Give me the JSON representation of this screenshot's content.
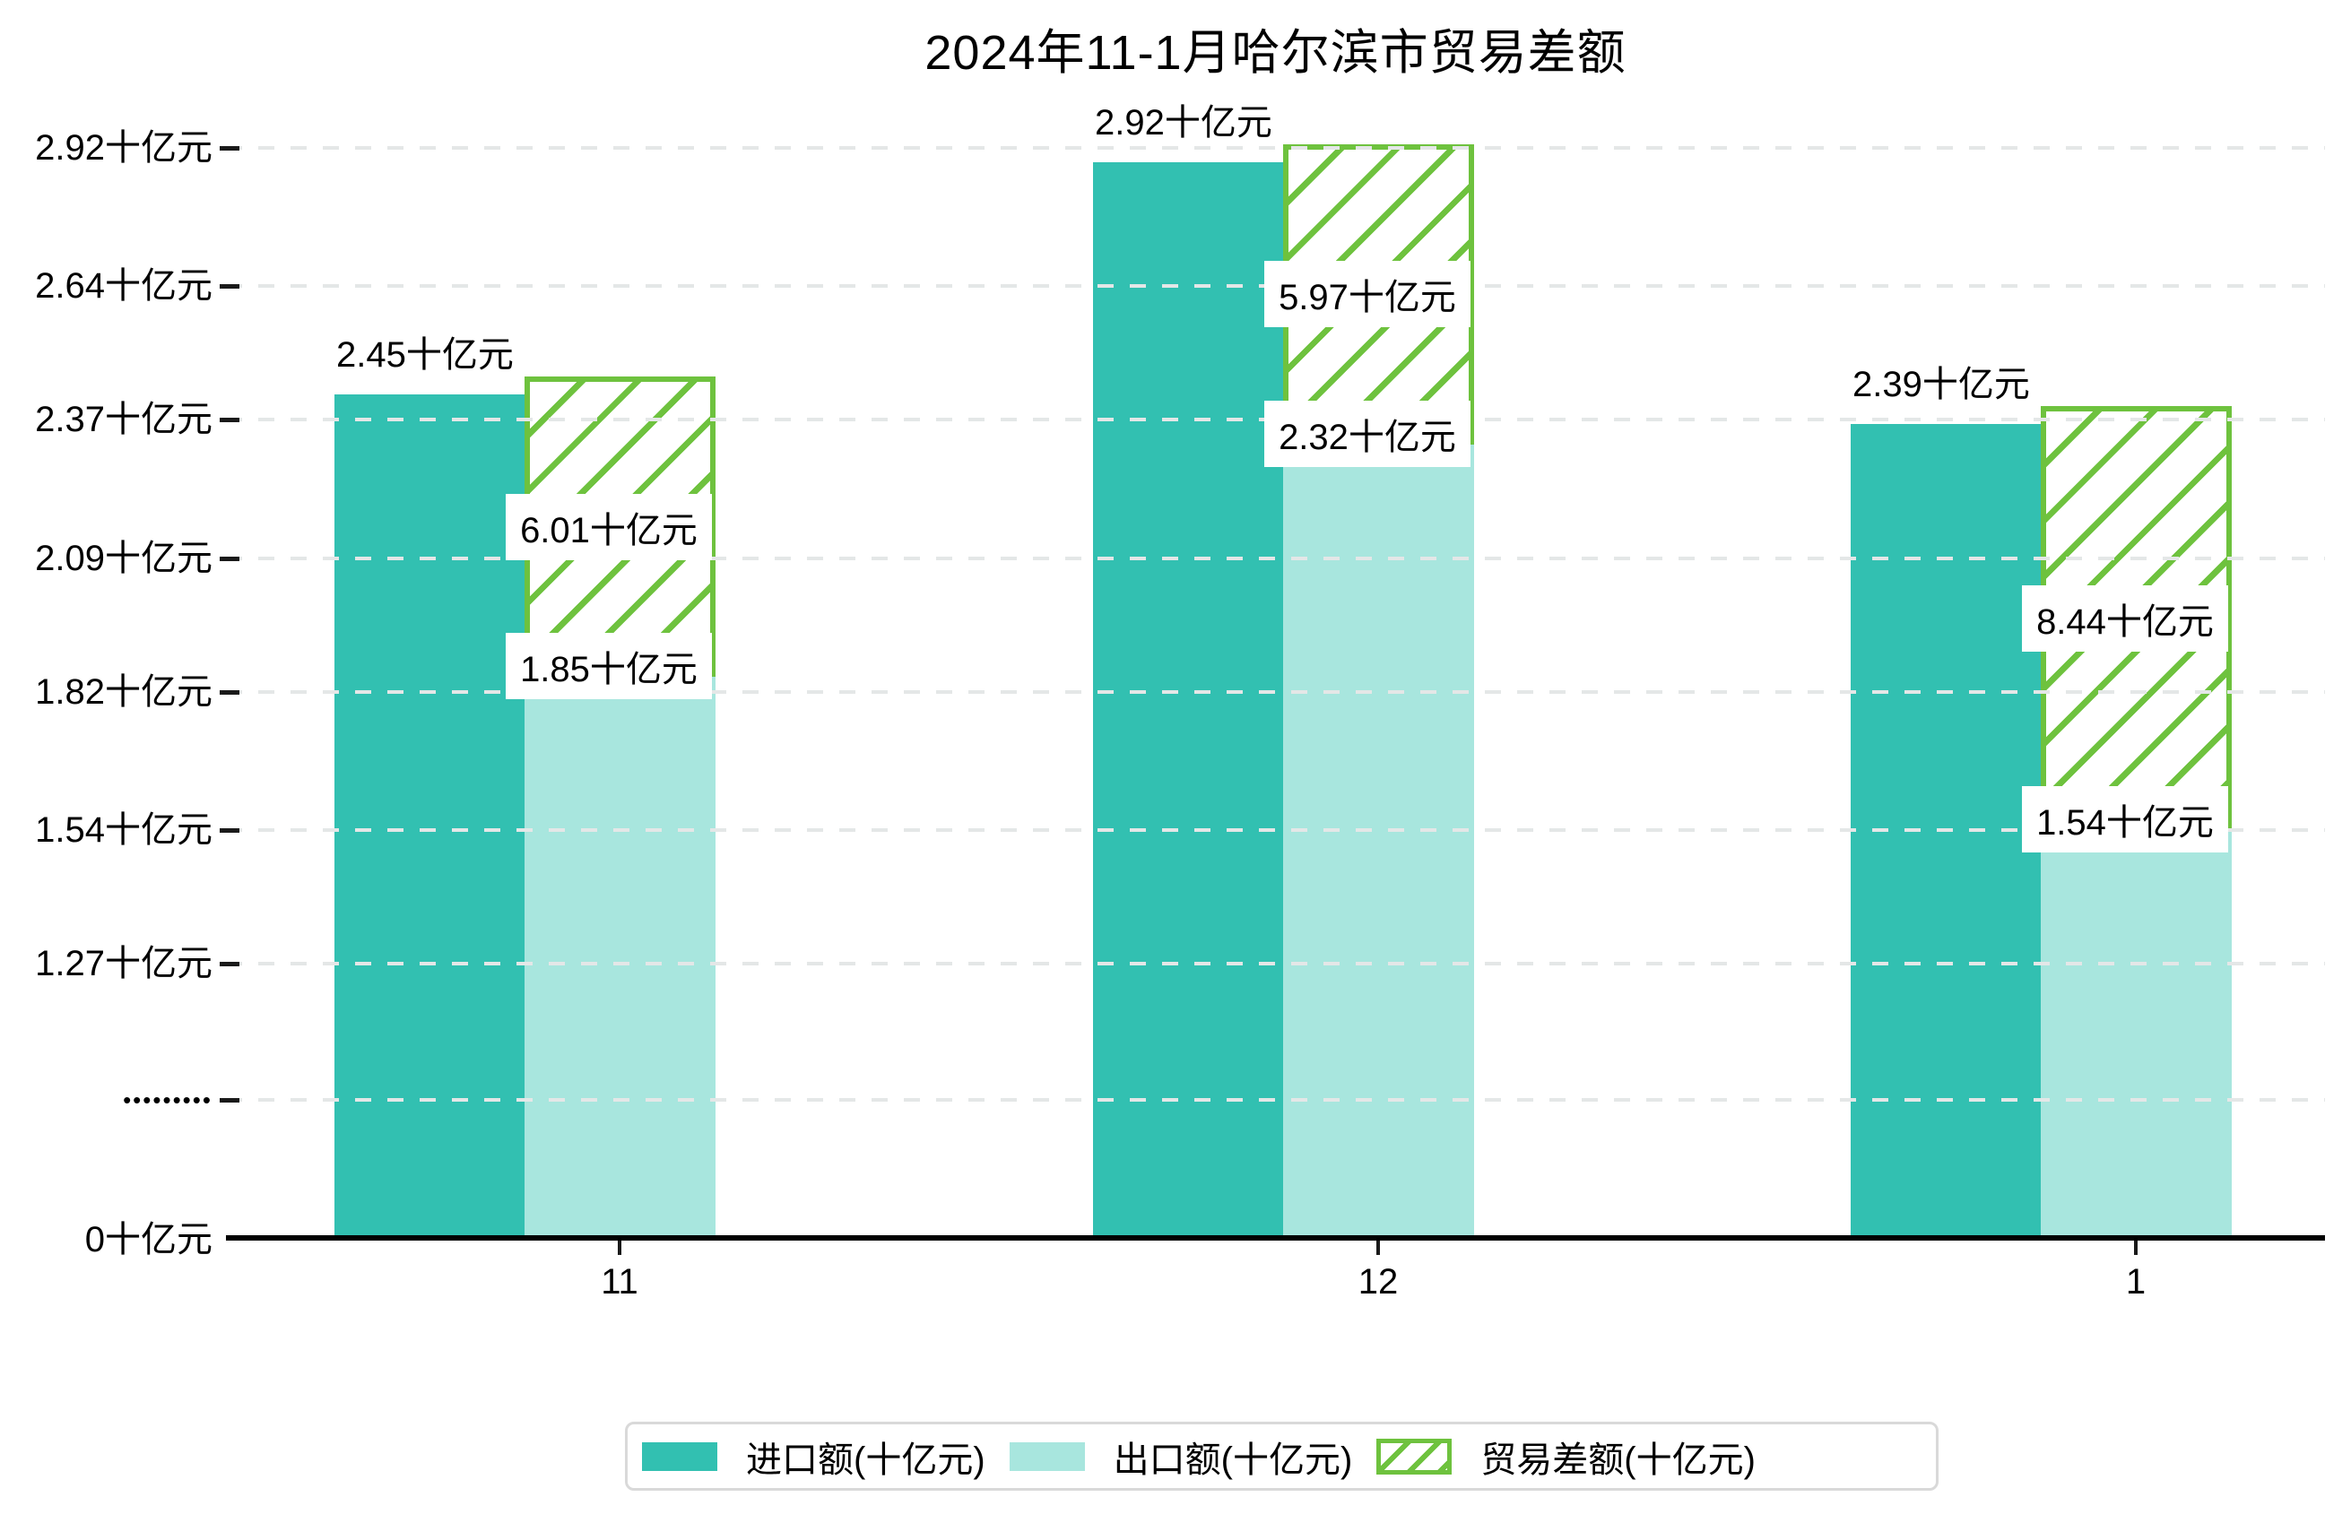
{
  "title": "2024年11-1月哈尔滨市贸易差额",
  "colors": {
    "import": "#32c0b1",
    "export": "#a8e6de",
    "diff_green": "#6ec23e",
    "gridline": "#e4e7e7",
    "axis": "#000000",
    "legend_border": "#d9d9d9",
    "label_box_bg": "#ffffff",
    "text": "#000000"
  },
  "legend": {
    "items": [
      {
        "label": "进口额(十亿元)",
        "swatch": "solid-teal"
      },
      {
        "label": "出口额(十亿元)",
        "swatch": "solid-light-teal"
      },
      {
        "label": "贸易差额(十亿元)",
        "swatch": "green-diagonal-hatch"
      }
    ]
  },
  "chart_data": {
    "type": "bar",
    "title": "2024年11-1月哈尔滨市贸易差额",
    "categories": [
      "11",
      "12",
      "1"
    ],
    "series": [
      {
        "name": "进口额(十亿元)",
        "role": "import",
        "values": [
          2.45,
          2.92,
          2.39
        ],
        "labels": [
          "2.45十亿元",
          "2.92十亿元",
          "2.39十亿元"
        ],
        "color": "#32c0b1"
      },
      {
        "name": "出口额(十亿元)",
        "role": "export",
        "values": [
          1.85,
          2.32,
          1.54
        ],
        "labels": [
          "1.85十亿元",
          "2.32十亿元",
          "1.54十亿元"
        ],
        "color": "#a8e6de"
      },
      {
        "name": "贸易差额(十亿元)",
        "role": "diff",
        "values": [
          6.01,
          5.97,
          8.44
        ],
        "labels": [
          "6.01十亿元",
          "5.97十亿元",
          "8.44十亿元"
        ],
        "color": "#6ec23e",
        "pattern": "diagonal-hatch",
        "note": "hatched bar spans from export top to import top"
      }
    ],
    "y_axis": {
      "unit": "十亿元",
      "ticks": [
        {
          "label": "2.92十亿元",
          "value": 2.92
        },
        {
          "label": "2.64十亿元",
          "value": 2.64
        },
        {
          "label": "2.37十亿元",
          "value": 2.37
        },
        {
          "label": "2.09十亿元",
          "value": 2.09
        },
        {
          "label": "1.82十亿元",
          "value": 1.82
        },
        {
          "label": "1.54十亿元",
          "value": 1.54
        },
        {
          "label": "1.27十亿元",
          "value": 1.27
        },
        {
          "label": "•••••••••",
          "value": "break"
        },
        {
          "label": "0十亿元",
          "value": 0
        }
      ],
      "axis_break": true,
      "gridlines": "dashed"
    },
    "x_axis": {
      "labels": [
        "11",
        "12",
        "1"
      ]
    },
    "legend_position": "bottom-center"
  }
}
